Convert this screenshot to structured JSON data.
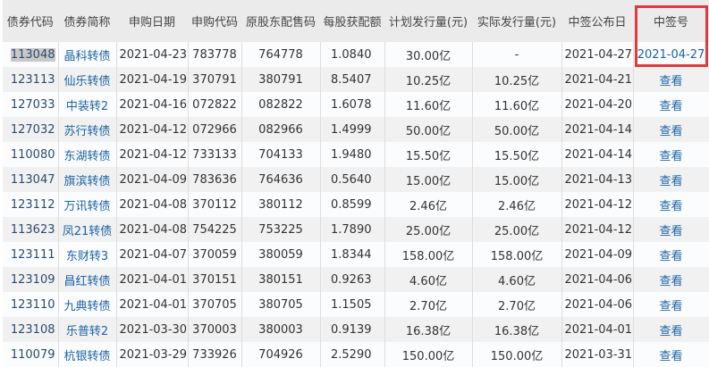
{
  "columns": [
    "债券代码",
    "债券简称",
    "申购日期",
    "申购代码",
    "原股东配售码",
    "每股获配额",
    "计划发行量(元)",
    "实际发行量(元)",
    "中签公布日",
    "中签号"
  ],
  "rows": [
    [
      "113048",
      "晶科转债",
      "2021-04-23",
      "783778",
      "764778",
      "1.0840",
      "30.00亿",
      "-",
      "2021-04-27",
      "2021-04-27"
    ],
    [
      "123113",
      "仙乐转债",
      "2021-04-19",
      "370791",
      "380791",
      "8.5407",
      "10.25亿",
      "10.25亿",
      "2021-04-21",
      "查看"
    ],
    [
      "127033",
      "中装转2",
      "2021-04-16",
      "072822",
      "082822",
      "1.6078",
      "11.60亿",
      "11.60亿",
      "2021-04-20",
      "查看"
    ],
    [
      "127032",
      "苏行转债",
      "2021-04-12",
      "072966",
      "082966",
      "1.4999",
      "50.00亿",
      "50.00亿",
      "2021-04-14",
      "查看"
    ],
    [
      "110080",
      "东湖转债",
      "2021-04-12",
      "733133",
      "704133",
      "1.9480",
      "15.50亿",
      "15.50亿",
      "2021-04-14",
      "查看"
    ],
    [
      "113047",
      "旗滨转债",
      "2021-04-09",
      "783636",
      "764636",
      "0.5640",
      "15.00亿",
      "15.00亿",
      "2021-04-13",
      "查看"
    ],
    [
      "123112",
      "万讯转债",
      "2021-04-08",
      "370112",
      "380112",
      "0.8599",
      "2.46亿",
      "2.46亿",
      "2021-04-12",
      "查看"
    ],
    [
      "113623",
      "凤21转债",
      "2021-04-08",
      "754225",
      "753225",
      "1.7890",
      "25.00亿",
      "25.00亿",
      "2021-04-12",
      "查看"
    ],
    [
      "123111",
      "东财转3",
      "2021-04-07",
      "370059",
      "380059",
      "1.8344",
      "158.00亿",
      "158.00亿",
      "2021-04-09",
      "查看"
    ],
    [
      "123109",
      "昌红转债",
      "2021-04-01",
      "370151",
      "380151",
      "0.9263",
      "4.60亿",
      "4.60亿",
      "2021-04-06",
      "查看"
    ],
    [
      "123110",
      "九典转债",
      "2021-04-01",
      "370705",
      "380705",
      "1.1505",
      "2.70亿",
      "2.70亿",
      "2021-04-06",
      "查看"
    ],
    [
      "123108",
      "乐普转2",
      "2021-03-30",
      "370003",
      "380003",
      "0.9139",
      "16.38亿",
      "16.38亿",
      "2021-04-01",
      "查看"
    ],
    [
      "110079",
      "杭银转债",
      "2021-03-29",
      "733926",
      "704926",
      "2.5290",
      "150.00亿",
      "150.00亿",
      "2021-03-31",
      "查看"
    ]
  ],
  "colors": {
    "link": "#1b64a6",
    "highlight_border": "#e0393e",
    "header_bg": "#ebebeb"
  }
}
